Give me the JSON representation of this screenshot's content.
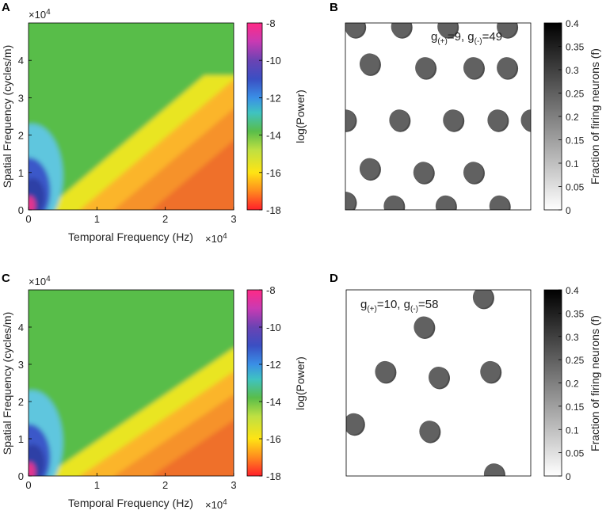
{
  "panels": [
    {
      "letter": "A"
    },
    {
      "letter": "B"
    },
    {
      "letter": "C"
    },
    {
      "letter": "D"
    }
  ],
  "chart_data": [
    {
      "panel": "A",
      "type": "heatmap",
      "xlabel": "Temporal Frequency (Hz)",
      "ylabel": "Spatial Frequency (cycles/m)",
      "x_exponent": "×10",
      "x_exponent_power": "4",
      "y_exponent": "×10",
      "y_exponent_power": "4",
      "xlim": [
        0,
        30000
      ],
      "ylim": [
        0,
        50000
      ],
      "xticks": [
        {
          "value": 0,
          "label": "0"
        },
        {
          "value": 10000,
          "label": "1"
        },
        {
          "value": 20000,
          "label": "2"
        },
        {
          "value": 30000,
          "label": "3"
        }
      ],
      "yticks": [
        {
          "value": 0,
          "label": "0"
        },
        {
          "value": 10000,
          "label": "1"
        },
        {
          "value": 20000,
          "label": "2"
        },
        {
          "value": 30000,
          "label": "3"
        },
        {
          "value": 40000,
          "label": "4"
        }
      ],
      "ridge_slope": 1.55,
      "colorbar": {
        "label": "log(Power)",
        "range": [
          -18,
          -8
        ],
        "ticks": [
          {
            "value": -8,
            "label": "-8"
          },
          {
            "value": -10,
            "label": "-10"
          },
          {
            "value": -12,
            "label": "-12"
          },
          {
            "value": -14,
            "label": "-14"
          },
          {
            "value": -16,
            "label": "-16"
          },
          {
            "value": -18,
            "label": "-18"
          }
        ]
      }
    },
    {
      "panel": "B",
      "type": "heatmap",
      "annotation": {
        "g": "g",
        "plus_sub": "(+)",
        "plus_val": "=9, ",
        "minus_sub": "(-)",
        "minus_val": "=49"
      },
      "bumps": [
        [
          0.05,
          0.02
        ],
        [
          0.3,
          0.02
        ],
        [
          0.55,
          0.02
        ],
        [
          0.87,
          0.02
        ],
        [
          0.13,
          0.22
        ],
        [
          0.43,
          0.24
        ],
        [
          0.69,
          0.24
        ],
        [
          0.87,
          0.24
        ],
        [
          0.0,
          0.52
        ],
        [
          0.29,
          0.52
        ],
        [
          0.58,
          0.52
        ],
        [
          0.82,
          0.52
        ],
        [
          1.0,
          0.52
        ],
        [
          0.13,
          0.78
        ],
        [
          0.42,
          0.8
        ],
        [
          0.69,
          0.8
        ],
        [
          0.0,
          0.96
        ],
        [
          0.26,
          0.98
        ],
        [
          0.54,
          0.98
        ],
        [
          0.83,
          0.98
        ]
      ],
      "colorbar": {
        "label": "Fraction of firing neurons  (f)",
        "range": [
          0,
          0.4
        ],
        "ticks": [
          {
            "value": 0,
            "label": "0"
          },
          {
            "value": 0.05,
            "label": "0.05"
          },
          {
            "value": 0.1,
            "label": "0.1"
          },
          {
            "value": 0.15,
            "label": "0.15"
          },
          {
            "value": 0.2,
            "label": "0.2"
          },
          {
            "value": 0.25,
            "label": "0.25"
          },
          {
            "value": 0.3,
            "label": "0.3"
          },
          {
            "value": 0.35,
            "label": "0.35"
          },
          {
            "value": 0.4,
            "label": "0.4"
          }
        ]
      }
    },
    {
      "panel": "C",
      "type": "heatmap",
      "xlabel": "Temporal Frequency (Hz)",
      "ylabel": "Spatial Frequency (cycles/m)",
      "x_exponent": "×10",
      "x_exponent_power": "4",
      "y_exponent": "×10",
      "y_exponent_power": "4",
      "xlim": [
        0,
        30000
      ],
      "ylim": [
        0,
        50000
      ],
      "xticks": [
        {
          "value": 0,
          "label": "0"
        },
        {
          "value": 10000,
          "label": "1"
        },
        {
          "value": 20000,
          "label": "2"
        },
        {
          "value": 30000,
          "label": "3"
        }
      ],
      "yticks": [
        {
          "value": 0,
          "label": "0"
        },
        {
          "value": 10000,
          "label": "1"
        },
        {
          "value": 20000,
          "label": "2"
        },
        {
          "value": 30000,
          "label": "3"
        },
        {
          "value": 40000,
          "label": "4"
        }
      ],
      "ridge_slope": 1.25,
      "colorbar": {
        "label": "log(Power)",
        "range": [
          -18,
          -8
        ],
        "ticks": [
          {
            "value": -8,
            "label": "-8"
          },
          {
            "value": -10,
            "label": "-10"
          },
          {
            "value": -12,
            "label": "-12"
          },
          {
            "value": -14,
            "label": "-14"
          },
          {
            "value": -16,
            "label": "-16"
          },
          {
            "value": -18,
            "label": "-18"
          }
        ]
      }
    },
    {
      "panel": "D",
      "type": "heatmap",
      "annotation": {
        "g": "g",
        "plus_sub": "(+)",
        "plus_val": "=10, ",
        "minus_sub": "(-)",
        "minus_val": "=58"
      },
      "bumps": [
        [
          0.74,
          0.04
        ],
        [
          0.42,
          0.2
        ],
        [
          0.21,
          0.44
        ],
        [
          0.5,
          0.47
        ],
        [
          0.78,
          0.44
        ],
        [
          0.04,
          0.72
        ],
        [
          0.45,
          0.76
        ],
        [
          0.8,
          0.99
        ]
      ],
      "colorbar": {
        "label": "Fraction of firing neurons  (f)",
        "range": [
          0,
          0.4
        ],
        "ticks": [
          {
            "value": 0,
            "label": "0"
          },
          {
            "value": 0.05,
            "label": "0.05"
          },
          {
            "value": 0.1,
            "label": "0.1"
          },
          {
            "value": 0.15,
            "label": "0.15"
          },
          {
            "value": 0.2,
            "label": "0.2"
          },
          {
            "value": 0.25,
            "label": "0.25"
          },
          {
            "value": 0.3,
            "label": "0.3"
          },
          {
            "value": 0.35,
            "label": "0.35"
          },
          {
            "value": 0.4,
            "label": "0.4"
          }
        ]
      }
    }
  ]
}
